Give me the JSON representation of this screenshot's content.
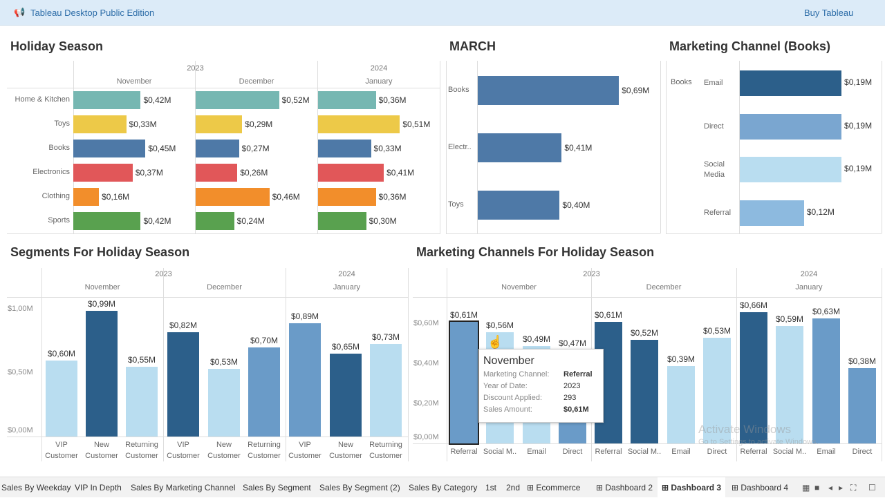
{
  "topbar": {
    "title": "Tableau Desktop Public Edition",
    "icon": "megaphone-icon",
    "buy": "Buy Tableau"
  },
  "holiday": {
    "title": "Holiday Season",
    "years": [
      "2023",
      "2024"
    ],
    "months": [
      "November",
      "December",
      "January"
    ],
    "categories": [
      "Home & Kitchen",
      "Toys",
      "Books",
      "Electronics",
      "Clothing",
      "Sports"
    ],
    "colors": [
      "#76b7b2",
      "#edc948",
      "#4e79a7",
      "#e15759",
      "#f28e2b",
      "#59a14f"
    ],
    "values": [
      [
        0.42,
        0.33,
        0.45,
        0.37,
        0.16,
        0.42
      ],
      [
        0.52,
        0.29,
        0.27,
        0.26,
        0.46,
        0.24
      ],
      [
        0.36,
        0.51,
        0.33,
        0.41,
        0.36,
        0.3
      ]
    ],
    "labels": [
      [
        "$0,42M",
        "$0,33M",
        "$0,45M",
        "$0,37M",
        "$0,16M",
        "$0,42M"
      ],
      [
        "$0,52M",
        "$0,29M",
        "$0,27M",
        "$0,26M",
        "$0,46M",
        "$0,24M"
      ],
      [
        "$0,36M",
        "$0,51M",
        "$0,33M",
        "$0,41M",
        "$0,36M",
        "$0,30M"
      ]
    ]
  },
  "march": {
    "title": "MARCH",
    "color": "#4e79a7",
    "categories": [
      "Books",
      "Electr..",
      "Toys"
    ],
    "values": [
      0.69,
      0.41,
      0.4
    ],
    "labels": [
      "$0,69M",
      "$0,41M",
      "$0,40M"
    ]
  },
  "channel_books": {
    "title": "Marketing Channel (Books)",
    "group": "Books",
    "categories": [
      "Email",
      "Direct",
      "Social\nMedia",
      "Referral"
    ],
    "values": [
      0.19,
      0.19,
      0.19,
      0.12
    ],
    "labels": [
      "$0,19M",
      "$0,19M",
      "$0,19M",
      "$0,12M"
    ],
    "colors": [
      "#2c5f8a",
      "#7aa6d0",
      "#b9ddf0",
      "#8dbadf"
    ]
  },
  "segments": {
    "title": "Segments For Holiday Season",
    "years": [
      "2023",
      "2024"
    ],
    "months": [
      "November",
      "December",
      "January"
    ],
    "yticks": [
      "$1,00M",
      "$0,50M",
      "$0,00M"
    ],
    "categories": [
      "VIP\nCustomer",
      "New\nCustomer",
      "Returning\nCustomer"
    ],
    "values": [
      [
        0.6,
        0.99,
        0.55
      ],
      [
        0.82,
        0.53,
        0.7
      ],
      [
        0.89,
        0.65,
        0.73
      ]
    ],
    "labels": [
      [
        "$0,60M",
        "$0,99M",
        "$0,55M"
      ],
      [
        "$0,82M",
        "$0,53M",
        "$0,70M"
      ],
      [
        "$0,89M",
        "$0,65M",
        "$0,73M"
      ]
    ],
    "colors": [
      [
        "#b9ddf0",
        "#2c5f8a",
        "#b9ddf0"
      ],
      [
        "#2c5f8a",
        "#b9ddf0",
        "#6a9bc8"
      ],
      [
        "#6a9bc8",
        "#2c5f8a",
        "#b9ddf0"
      ]
    ]
  },
  "channels": {
    "title": "Marketing Channels For Holiday Season",
    "years": [
      "2023",
      "2024"
    ],
    "months": [
      "November",
      "December",
      "January"
    ],
    "yticks": [
      "$0,60M",
      "$0,40M",
      "$0,20M",
      "$0,00M"
    ],
    "categories": [
      "Referral",
      "Social M..",
      "Email",
      "Direct"
    ],
    "values": [
      [
        0.61,
        0.56,
        0.49,
        0.47
      ],
      [
        0.61,
        0.52,
        0.39,
        0.53
      ],
      [
        0.66,
        0.59,
        0.63,
        0.38
      ]
    ],
    "labels": [
      [
        "$0,61M",
        "$0,56M",
        "$0,49M",
        "$0,47M"
      ],
      [
        "$0,61M",
        "$0,52M",
        "$0,39M",
        "$0,53M"
      ],
      [
        "$0,66M",
        "$0,59M",
        "$0,63M",
        "$0,38M"
      ]
    ],
    "colors": [
      [
        "#6a9bc8",
        "#b9ddf0",
        "#b9ddf0",
        "#6a9bc8"
      ],
      [
        "#2c5f8a",
        "#2c5f8a",
        "#b9ddf0",
        "#b9ddf0"
      ],
      [
        "#2c5f8a",
        "#b9ddf0",
        "#6a9bc8",
        "#6a9bc8"
      ]
    ]
  },
  "tooltip": {
    "title": "November",
    "rows": [
      {
        "k": "Marketing Channel:",
        "v": "Referral"
      },
      {
        "k": "Year of Date:",
        "v": "2023"
      },
      {
        "k": "Discount Applied:",
        "v": "293"
      },
      {
        "k": "Sales Amount:",
        "v": "$0,61M"
      }
    ]
  },
  "watermark": {
    "line1": "Activate Windows",
    "line2": "Go to Settings to activate Windows."
  },
  "tabs": [
    {
      "label": "Sales By Weekday"
    },
    {
      "label": "VIP In Depth"
    },
    {
      "label": "Sales By Marketing Channel"
    },
    {
      "label": "Sales By Segment"
    },
    {
      "label": "Sales By Segment (2)"
    },
    {
      "label": "Sales By Category"
    },
    {
      "label": "1st"
    },
    {
      "label": "2nd"
    },
    {
      "label": "Ecommerce",
      "dash": true
    },
    {
      "label": "Dashboard 2",
      "dash": true
    },
    {
      "label": "Dashboard 3",
      "dash": true,
      "active": true
    },
    {
      "label": "Dashboard 4",
      "dash": true
    }
  ]
}
